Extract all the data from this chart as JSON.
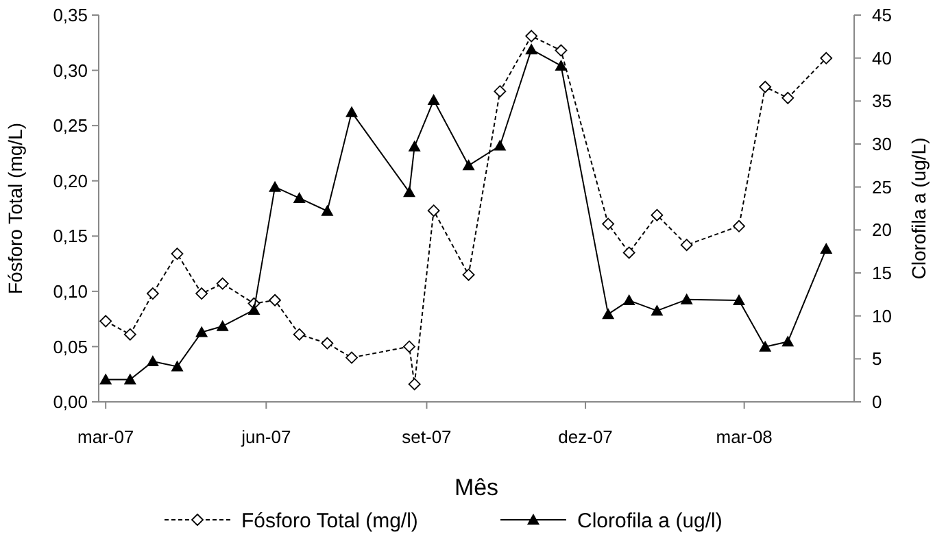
{
  "chart_data": {
    "type": "line",
    "xlabel": "Mês",
    "ylabel": "Fósforo Total (mg/L)",
    "y2label": "Clorofila a (ug/L)",
    "x": [
      "2007-03-01",
      "2007-03-15",
      "2007-03-28",
      "2007-04-11",
      "2007-04-25",
      "2007-05-07",
      "2007-05-25",
      "2007-06-06",
      "2007-06-20",
      "2007-07-06",
      "2007-07-20",
      "2007-08-22",
      "2007-08-25",
      "2007-09-05",
      "2007-09-25",
      "2007-10-13",
      "2007-10-31",
      "2007-11-17",
      "2007-12-14",
      "2007-12-26",
      "2008-01-11",
      "2008-01-28",
      "2008-02-27",
      "2008-03-13",
      "2008-03-26",
      "2008-04-17"
    ],
    "series": [
      {
        "name": "Fósforo Total (mg/l)",
        "color": "#000000",
        "marker": "diamond",
        "line_style": "dashed",
        "values": [
          0.073,
          0.061,
          0.098,
          0.134,
          0.098,
          0.107,
          0.089,
          0.092,
          0.061,
          0.053,
          0.04,
          0.05,
          0.016,
          0.173,
          0.115,
          0.281,
          0.331,
          0.318,
          0.161,
          0.135,
          0.169,
          0.142,
          0.159,
          0.285,
          0.275,
          0.311
        ]
      },
      {
        "name": "Clorofila a (ug/l)",
        "color": "#000000",
        "marker": "triangle",
        "line_style": "solid",
        "axis": "y2",
        "values": [
          2.6,
          2.6,
          4.7,
          4.1,
          8.1,
          8.8,
          10.7,
          25.0,
          23.7,
          22.2,
          33.7,
          24.4,
          29.7,
          35.1,
          27.5,
          29.8,
          41.0,
          39.1,
          10.2,
          11.8,
          10.6,
          11.9,
          11.8,
          6.4,
          7.0,
          17.8
        ]
      }
    ],
    "xlim": [
      "2007-02-25",
      "2008-05-03"
    ],
    "xticks": [
      {
        "value": "2007-03-01",
        "label": "mar-07"
      },
      {
        "value": "2007-06-01",
        "label": "jun-07"
      },
      {
        "value": "2007-09-01",
        "label": "set-07"
      },
      {
        "value": "2007-12-01",
        "label": "dez-07"
      },
      {
        "value": "2008-03-01",
        "label": "mar-08"
      }
    ],
    "ylim": [
      0,
      0.35
    ],
    "yticks": [
      {
        "value": 0,
        "label": "0,00"
      },
      {
        "value": 0.05,
        "label": "0,05"
      },
      {
        "value": 0.1,
        "label": "0,10"
      },
      {
        "value": 0.15,
        "label": "0,15"
      },
      {
        "value": 0.2,
        "label": "0,20"
      },
      {
        "value": 0.25,
        "label": "0,25"
      },
      {
        "value": 0.3,
        "label": "0,30"
      },
      {
        "value": 0.35,
        "label": "0,35"
      }
    ],
    "y2lim": [
      0,
      45
    ],
    "y2ticks": [
      0,
      5,
      10,
      15,
      20,
      25,
      30,
      35,
      40,
      45
    ],
    "grid": false,
    "legend": "bottom"
  }
}
